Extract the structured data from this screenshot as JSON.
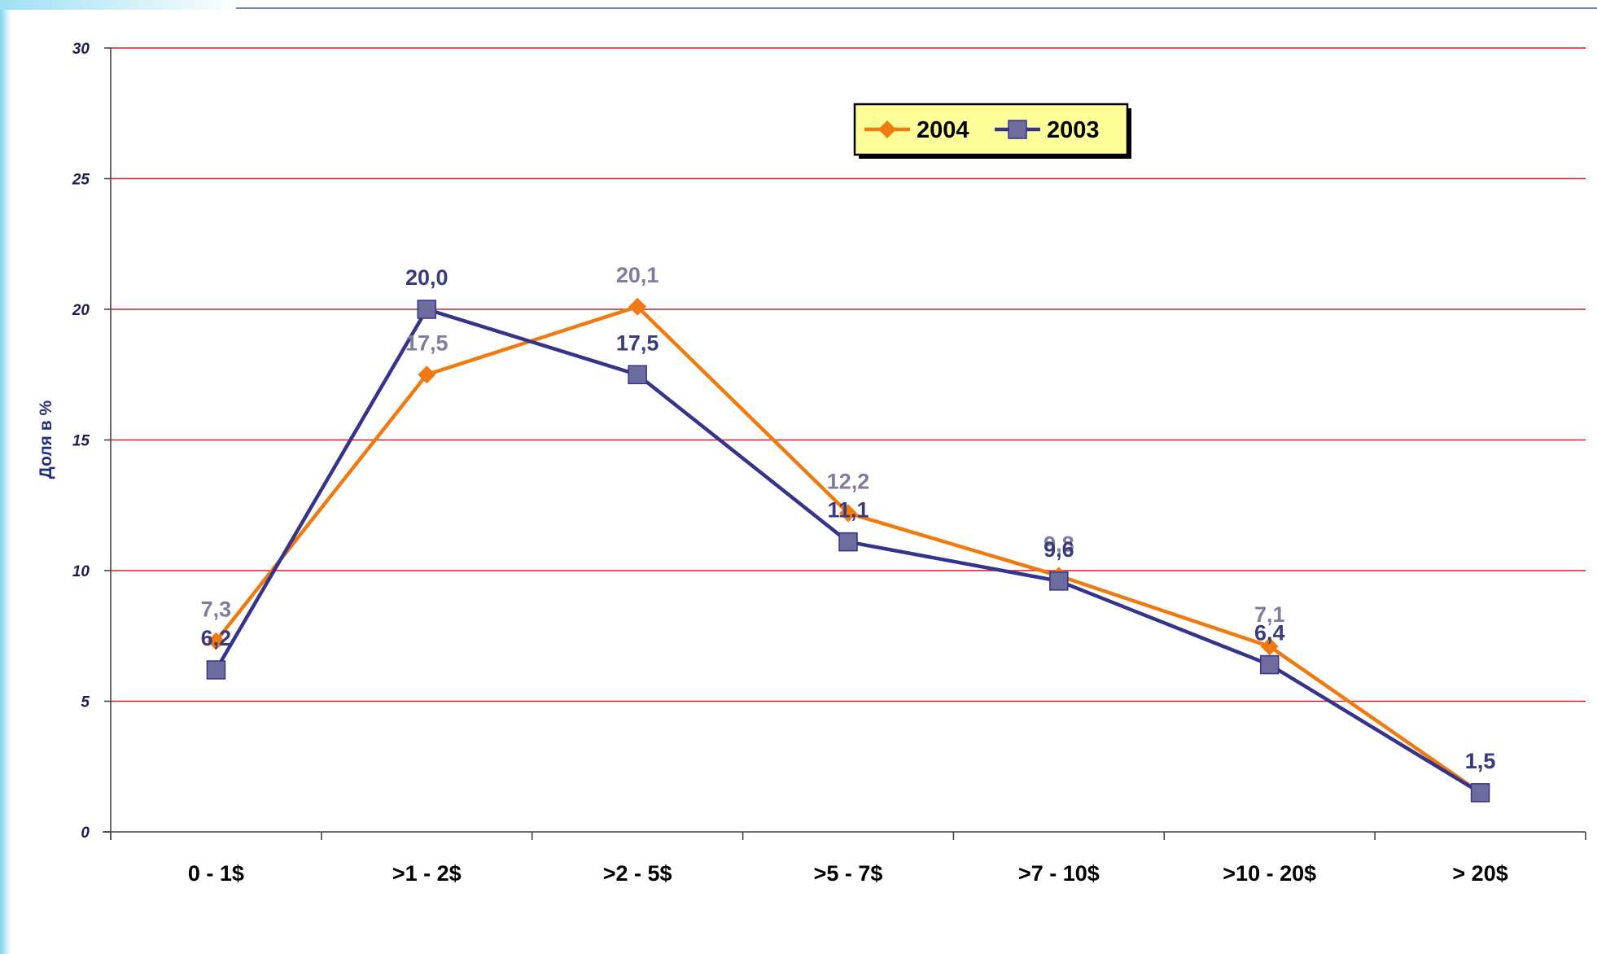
{
  "chart_data": {
    "type": "line",
    "categories": [
      "0 - 1$",
      ">1 - 2$",
      ">2 - 5$",
      ">5 - 7$",
      ">7 - 10$",
      ">10 - 20$",
      "> 20$"
    ],
    "series": [
      {
        "name": "2004",
        "values": [
          7.3,
          17.5,
          20.1,
          12.2,
          9.8,
          7.1,
          1.5
        ],
        "labels": [
          "7,3",
          "17,5",
          "20,1",
          "12,2",
          "9,8",
          "7,1",
          "1,5"
        ],
        "color": "#f07a10",
        "label_color": "#7d7d9e",
        "marker": "diamond"
      },
      {
        "name": "2003",
        "values": [
          6.2,
          20.0,
          17.5,
          11.1,
          9.6,
          6.4,
          1.5
        ],
        "labels": [
          "6,2",
          "20,0",
          "17,5",
          "11,1",
          "9,6",
          "6,4",
          "1,5"
        ],
        "color": "#35338a",
        "label_color": "#3a3a7e",
        "marker_color": "#6e6c9e",
        "marker": "square"
      }
    ],
    "title": "",
    "xlabel": "",
    "ylabel": "Доля в %",
    "ylim": [
      0,
      30
    ],
    "yticks": [
      0,
      5,
      10,
      15,
      20,
      25,
      30
    ],
    "grid": true,
    "gridline_color": "#cc2222",
    "legend_position": "top-center",
    "legend_background": "#ffff99"
  }
}
